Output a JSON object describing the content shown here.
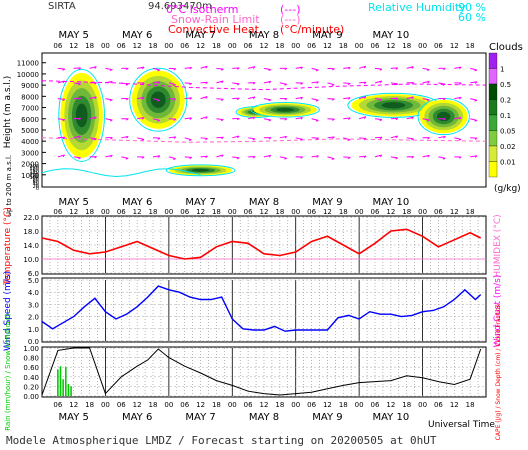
{
  "header": {
    "station": "SIRTA",
    "coords": "94.693470m",
    "isotherm_label": "0°C Isotherm",
    "isotherm_key": "(---)",
    "snowrain_label": "Snow-Rain Limit",
    "snowrain_key": "(---)",
    "convective_label": "Convective Heat.",
    "convective_key": "(°C/minute)",
    "rh_label": "Relative Humidity",
    "rh_90": "90 %",
    "rh_60": "60 %"
  },
  "footer": {
    "title": "Modele Atmospherique LMDZ / Forecast starting on 20200505 at 0hUT",
    "universal_time": "Universal Time"
  },
  "colors": {
    "magenta": "#ff00ff",
    "cyan": "#00e5ee",
    "red": "#ff0000",
    "pink": "#ff66cc",
    "blue": "#0000ff",
    "green": "#00cc00"
  },
  "chart_data": [
    {
      "type": "heatmap",
      "title": "Clouds",
      "ylabel": "Height (m a.s.l.)",
      "ylabel_low": "Up to 200 m a.s.l.",
      "days": [
        "MAY 5",
        "MAY 6",
        "MAY 7",
        "MAY 8",
        "MAY 9",
        "MAY 10"
      ],
      "hour_ticks": [
        "06",
        "12",
        "18",
        "00"
      ],
      "height_ticks": [
        "11000",
        "10000",
        "9000",
        "8000",
        "7000",
        "6000",
        "5000",
        "4000",
        "3000",
        "2000",
        "1000"
      ],
      "low_height_ticks": [
        "200",
        "180",
        "160",
        "140",
        "120",
        "100",
        "80",
        "60",
        "40",
        "20",
        "0"
      ],
      "colorbar_labels": [
        "1",
        "0.5",
        "0.2",
        "0.1",
        "0.05",
        "0.02",
        "0.01"
      ],
      "colorbar_unit": "(g/kg)",
      "colorbar_colors": [
        "#a020f0",
        "#e066ff",
        "#004d00",
        "#1b7a1b",
        "#39a839",
        "#7fcc3f",
        "#d6ea3a",
        "#ffff00"
      ],
      "cloud_blobs": [
        {
          "t": 15,
          "h": 6300,
          "dt": 8,
          "dh": 3800
        },
        {
          "t": 44,
          "h": 7700,
          "dt": 10,
          "dh": 2600
        },
        {
          "t": 60,
          "h": 1400,
          "dt": 12,
          "dh": 450
        },
        {
          "t": 81,
          "h": 6600,
          "dt": 7,
          "dh": 450
        },
        {
          "t": 92,
          "h": 6800,
          "dt": 12,
          "dh": 600
        },
        {
          "t": 133,
          "h": 7200,
          "dt": 16,
          "dh": 1000
        },
        {
          "t": 152,
          "h": 6200,
          "dt": 9,
          "dh": 1500
        }
      ]
    },
    {
      "type": "line",
      "title": "",
      "ylabel": "Temperature (°C)",
      "ylabel_right": "HUMIDEX (°C)",
      "yticks": [
        "22.0",
        "18.0",
        "14.0",
        "10.0",
        "6.0"
      ],
      "ylim": [
        6,
        22
      ],
      "x_hours": [
        0,
        6,
        12,
        18,
        24,
        30,
        36,
        42,
        48,
        54,
        60,
        66,
        72,
        78,
        84,
        90,
        96,
        102,
        108,
        114,
        120,
        126,
        132,
        138,
        144,
        150,
        156,
        162,
        166
      ],
      "series": [
        {
          "values": [
            16.0,
            15.0,
            12.5,
            11.5,
            12.0,
            13.5,
            15.0,
            13.0,
            11.0,
            10.0,
            10.5,
            13.5,
            15.0,
            14.5,
            11.5,
            11.0,
            12.0,
            15.0,
            16.5,
            14.0,
            11.5,
            14.5,
            18.0,
            18.5,
            16.5,
            13.5,
            15.5,
            17.5,
            16.0
          ]
        }
      ]
    },
    {
      "type": "line",
      "title": "",
      "ylabel": "Wind Speed (m/s)",
      "ylabel_right": "Wind Gust (m/s)",
      "yticks": [
        "5.0",
        "4.0",
        "3.0",
        "2.0",
        "1.0",
        "0.0"
      ],
      "ylim": [
        0,
        5
      ],
      "x_hours": [
        0,
        4,
        8,
        12,
        16,
        20,
        24,
        28,
        32,
        36,
        40,
        44,
        48,
        52,
        56,
        60,
        64,
        68,
        72,
        76,
        80,
        84,
        88,
        92,
        96,
        100,
        104,
        108,
        112,
        116,
        120,
        124,
        128,
        132,
        136,
        140,
        144,
        148,
        152,
        156,
        160,
        164,
        166
      ],
      "series": [
        {
          "values": [
            1.6,
            1.0,
            1.5,
            2.0,
            2.8,
            3.5,
            2.4,
            1.8,
            2.2,
            2.8,
            3.6,
            4.5,
            4.2,
            4.0,
            3.6,
            3.4,
            3.4,
            3.6,
            1.8,
            1.0,
            0.9,
            0.9,
            1.2,
            0.8,
            0.9,
            0.9,
            0.9,
            0.9,
            1.9,
            2.1,
            1.8,
            2.4,
            2.2,
            2.2,
            2.0,
            2.1,
            2.4,
            2.5,
            2.8,
            3.4,
            4.2,
            3.4,
            3.8
          ]
        }
      ]
    },
    {
      "type": "line",
      "title": "",
      "ylabel": "Rain (mm/hour) / Snow (cm/hour)",
      "ylabel_right": "CAPE (J/g) / Snow Depth (cm) / Cloud Fraction",
      "yticks": [
        "1.00",
        "0.80",
        "0.60",
        "0.40",
        "0.20",
        "0.00"
      ],
      "ylim": [
        0,
        1
      ],
      "x_hours": [
        0,
        6,
        12,
        18,
        24,
        30,
        36,
        40,
        44,
        48,
        54,
        60,
        66,
        72,
        78,
        84,
        90,
        96,
        102,
        108,
        114,
        120,
        126,
        132,
        138,
        144,
        150,
        156,
        162,
        166
      ],
      "series": [
        {
          "values": [
            0.02,
            0.95,
            1.0,
            1.0,
            0.05,
            0.4,
            0.62,
            0.75,
            0.98,
            0.8,
            0.62,
            0.48,
            0.32,
            0.22,
            0.1,
            0.05,
            0.02,
            0.05,
            0.08,
            0.15,
            0.22,
            0.28,
            0.3,
            0.32,
            0.42,
            0.38,
            0.3,
            0.24,
            0.35,
            0.98
          ]
        }
      ],
      "rain_bars": [
        {
          "x": 6,
          "v": 0.55
        },
        {
          "x": 7,
          "v": 0.62
        },
        {
          "x": 8,
          "v": 0.35
        },
        {
          "x": 9,
          "v": 0.6
        },
        {
          "x": 10,
          "v": 0.25
        },
        {
          "x": 11,
          "v": 0.2
        }
      ]
    }
  ]
}
